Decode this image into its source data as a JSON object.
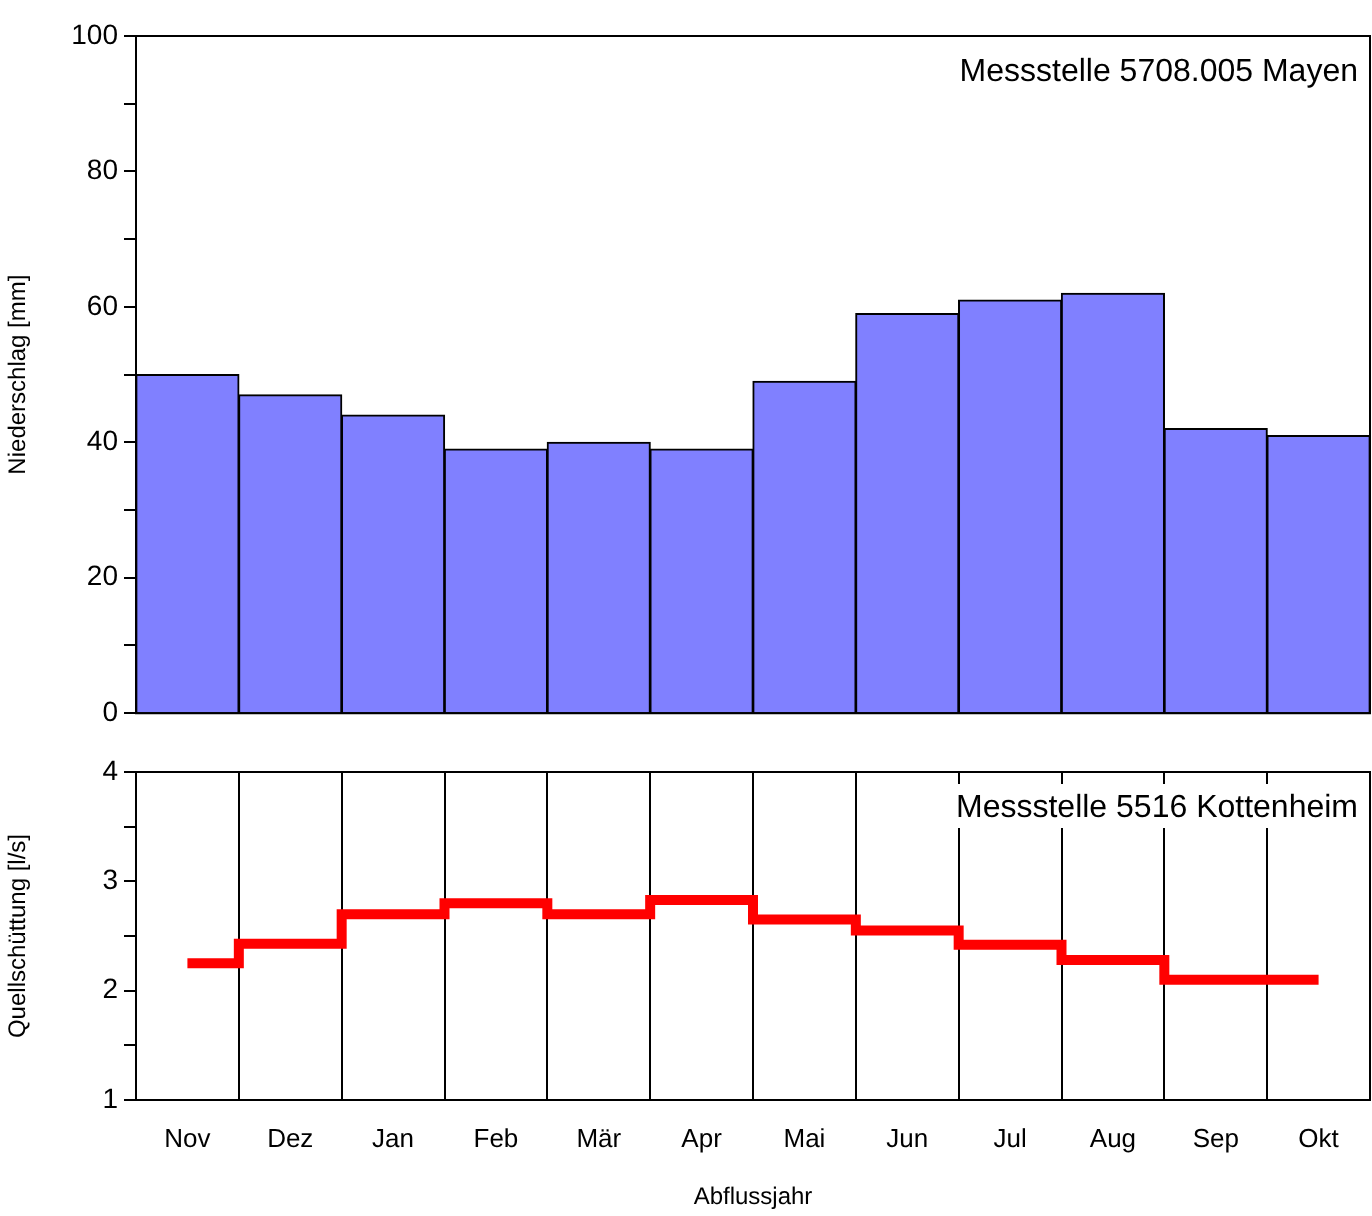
{
  "chart_data": [
    {
      "type": "bar",
      "ylabel": "Niederschlag [mm]",
      "annotations": [
        "Messstelle 5708.005 Mayen"
      ],
      "categories": [
        null,
        null,
        null,
        null,
        null,
        null,
        null,
        null,
        null,
        null,
        null,
        null
      ],
      "color": "#8080ff",
      "values": [
        50,
        47,
        44,
        39,
        40,
        39,
        49,
        59,
        61,
        62,
        42,
        41
      ],
      "ylim": [
        0,
        100
      ],
      "yticks": [
        0,
        {
          "value": 10,
          "label": null
        },
        20,
        {
          "value": 30,
          "label": null
        },
        40,
        {
          "value": 50,
          "label": null
        },
        60,
        {
          "value": 70,
          "label": null
        },
        80,
        {
          "value": 90,
          "label": null
        },
        100
      ],
      "tick_labels": "y",
      "grid": false,
      "legend": false
    },
    {
      "type": "step",
      "xlabel": "Abflussjahr",
      "ylabel": "Quellschüttung [l/s]",
      "annotations": [
        "Messstelle 5516 Kottenheim"
      ],
      "categories": [
        "Nov",
        "Dez",
        "Jan",
        "Feb",
        "Mär",
        "Apr",
        "Mai",
        "Jun",
        "Jul",
        "Aug",
        "Sep",
        "Okt"
      ],
      "color": "#ff0000",
      "values": [
        2.25,
        2.43,
        2.7,
        2.8,
        2.7,
        2.83,
        2.65,
        2.55,
        2.42,
        2.28,
        2.1,
        2.1
      ],
      "ylim": [
        1,
        4
      ],
      "yticks": [
        1,
        {
          "value": 1.5,
          "label": null
        },
        2,
        {
          "value": 2.5,
          "label": null
        },
        3,
        {
          "value": 3.5,
          "label": null
        },
        4
      ],
      "grid": "x",
      "legend": false
    }
  ]
}
